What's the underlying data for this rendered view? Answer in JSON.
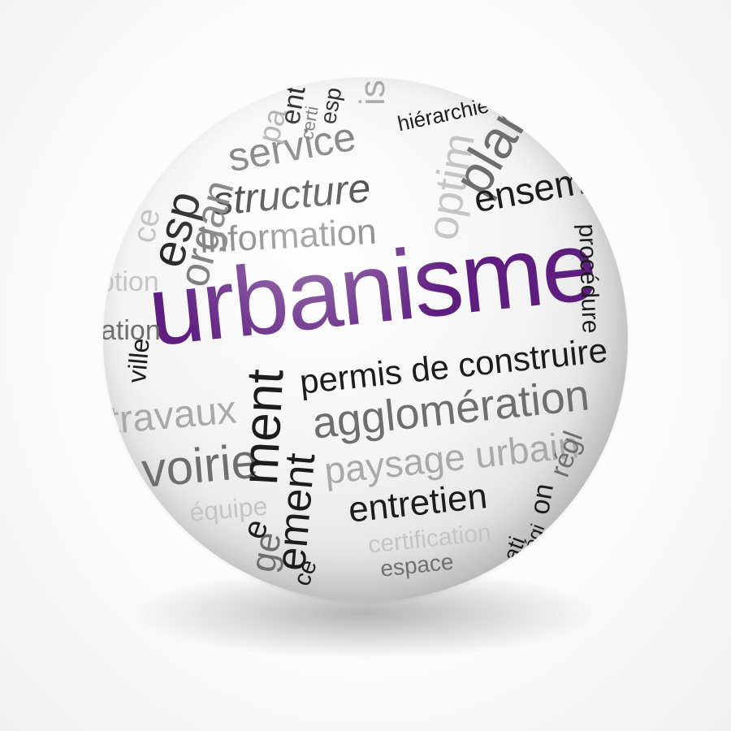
{
  "scene": {
    "colors": {
      "background": "#ffffff",
      "accent": "#5e1e80",
      "dark_text": "#1c1c1c",
      "mid_text": "#6e6e6e",
      "light_text": "#a9a9a9"
    },
    "words": {
      "urbanisme": "urbanisme",
      "permis": "permis de construire",
      "agglomeration": "agglomération",
      "paysage": "paysage urbain",
      "entretien": "entretien",
      "certification": "certification",
      "espace": "espace",
      "structure": "structure",
      "information": "information",
      "service": "service",
      "organ": "organ",
      "esp": "esp",
      "ce": "ce",
      "ption": "ption",
      "ation": "ation",
      "ville": "ville",
      "travaux": "travaux",
      "voirie": "voirie",
      "equipe": "équipe",
      "ment": "ment",
      "ement": "ement",
      "ge": "ge",
      "ce2": "ce",
      "plan": "plan",
      "optim": "optim",
      "ensemble": "ensem",
      "hierarchie": "hiérarchie",
      "entr": "ent",
      "certi": "certi",
      "espd": "esp",
      "is": "is",
      "pa": "pa",
      "procedure": "procédure",
      "on": "on",
      "reg": "régl",
      "ati": "ati",
      "reg2": "régi",
      "e": "e"
    }
  }
}
